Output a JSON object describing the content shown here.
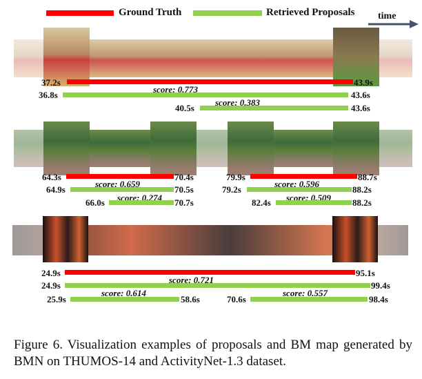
{
  "legend": {
    "ground_truth": "Ground Truth",
    "retrieved": "Retrieved Proposals",
    "time": "time"
  },
  "colors": {
    "ground_truth": "#ff0000",
    "proposal": "#92d050"
  },
  "examples": [
    {
      "gt": {
        "start": "37.2s",
        "end": "43.9s"
      },
      "proposals": [
        {
          "score": "score: 0.773",
          "start": "36.8s",
          "end": "43.6s"
        },
        {
          "score": "score: 0.383",
          "start": "40.5s",
          "end": "43.6s"
        }
      ]
    },
    {
      "gt": {
        "start": "64.3s",
        "end": "70.4s"
      },
      "proposals": [
        {
          "score": "score: 0.659",
          "start": "64.9s",
          "end": "70.5s"
        },
        {
          "score": "score: 0.274",
          "start": "66.0s",
          "end": "70.7s"
        }
      ]
    },
    {
      "gt": {
        "start": "79.9s",
        "end": "88.7s"
      },
      "proposals": [
        {
          "score": "score: 0.596",
          "start": "79.2s",
          "end": "88.2s"
        },
        {
          "score": "score: 0.509",
          "start": "82.4s",
          "end": "88.2s"
        }
      ]
    },
    {
      "gt": {
        "start": "24.9s",
        "end": "95.1s"
      },
      "proposals": [
        {
          "score": "score: 0.721",
          "start": "24.9s",
          "end": "99.4s"
        },
        {
          "score": "score: 0.614",
          "start": "25.9s",
          "end": "58.6s"
        },
        {
          "score": "score: 0.557",
          "start": "70.6s",
          "end": "98.4s"
        }
      ]
    }
  ],
  "caption": "Figure 6. Visualization examples of proposals and BM map generated by BMN on THUMOS-14 and ActivityNet-1.3 dataset."
}
